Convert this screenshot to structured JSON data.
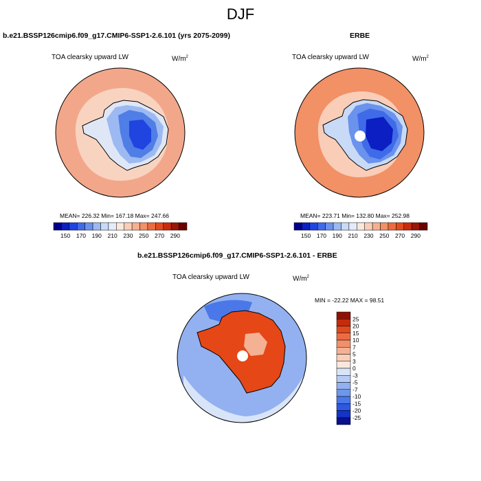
{
  "title": "DJF",
  "colors": {
    "ocean_light": "#f8d4c0",
    "ocean_mid": "#f3a78a",
    "ice_light": "#c8d9f3",
    "ice_blue": "#4f7ee6",
    "ice_deep": "#1b3bd6",
    "diff_land": "#e54717",
    "diff_ocean_blue": "#6f95ea",
    "diff_ocean_light": "#bdd0f2"
  },
  "panels": {
    "model": {
      "title": "b.e21.BSSP126cmip6.f09_g17.CMIP6-SSP1-2.6.101 (yrs 2075-2099)",
      "variable": "TOA clearsky upward LW",
      "units_base": "W/m",
      "units_exp": "2",
      "stats": "MEAN= 226.32  Min= 167.18  Max= 247.66"
    },
    "obs": {
      "title": "ERBE",
      "variable": "TOA clearsky upward LW",
      "units_base": "W/m",
      "units_exp": "2",
      "stats": "MEAN= 223.71  Min= 132.80  Max= 252.98"
    },
    "diff": {
      "title": "b.e21.BSSP126cmip6.f09_g17.CMIP6-SSP1-2.6.101 - ERBE",
      "variable": "TOA clearsky upward LW",
      "units_base": "W/m",
      "units_exp": "2",
      "stats": "MIN = -22.22 MAX =  98.51"
    }
  },
  "colorbar_main": {
    "colors": [
      "#00008b",
      "#0b1fc2",
      "#1f44e0",
      "#3f6be8",
      "#6b92ec",
      "#9db9f1",
      "#c9daf6",
      "#e4ecfb",
      "#fbe7db",
      "#f9cdb7",
      "#f6b090",
      "#f29066",
      "#ec6c3f",
      "#e34a1d",
      "#c82c0c",
      "#9a1606",
      "#6b0000"
    ],
    "labels": [
      "150",
      "170",
      "190",
      "210",
      "230",
      "250",
      "270",
      "290"
    ]
  },
  "colorbar_diff": {
    "colors": [
      "#0a0f8e",
      "#1434c9",
      "#2c58e3",
      "#4b78e8",
      "#6e96ec",
      "#93b1f0",
      "#b6cbf4",
      "#d8e5f9",
      "#fbe8dc",
      "#f8cfb9",
      "#f5b193",
      "#f1906a",
      "#ec6c41",
      "#e04a1f",
      "#c52c0c",
      "#8e1204"
    ],
    "labels": [
      "25",
      "20",
      "15",
      "10",
      "7",
      "5",
      "3",
      "0",
      "-3",
      "-5",
      "-7",
      "-10",
      "-15",
      "-20",
      "-25"
    ]
  }
}
